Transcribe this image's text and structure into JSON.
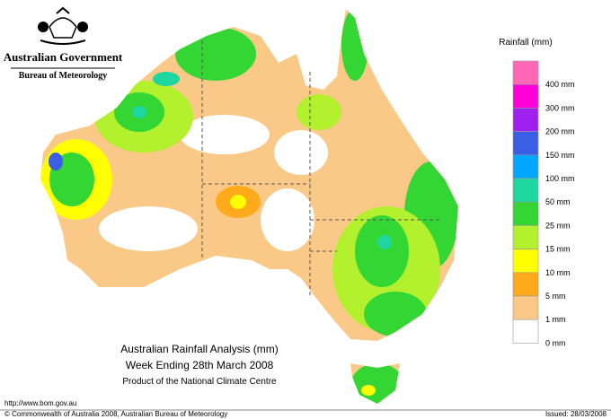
{
  "header": {
    "government": "Australian Government",
    "bureau": "Bureau of Meteorology"
  },
  "legend": {
    "title": "Rainfall (mm)",
    "items": [
      {
        "label": "400 mm",
        "color": "#ff66b3"
      },
      {
        "label": "300 mm",
        "color": "#ff00d9"
      },
      {
        "label": "200 mm",
        "color": "#a020f0"
      },
      {
        "label": "150 mm",
        "color": "#3a5fe6"
      },
      {
        "label": "100 mm",
        "color": "#00a6ff"
      },
      {
        "label": "50 mm",
        "color": "#1ed6a0"
      },
      {
        "label": "25 mm",
        "color": "#33d633"
      },
      {
        "label": "15 mm",
        "color": "#b3f02e"
      },
      {
        "label": "10 mm",
        "color": "#ffff00"
      },
      {
        "label": "5 mm",
        "color": "#ffaa1a"
      },
      {
        "label": "1 mm",
        "color": "#fac987"
      },
      {
        "label": "0 mm",
        "color": "#ffffff"
      }
    ]
  },
  "map": {
    "title": "Australian Rainfall Analysis (mm)",
    "subtitle": "Week Ending 28th March 2008",
    "credit": "Product of the National Climate Centre"
  },
  "footer": {
    "url": "http://www.bom.gov.au",
    "copyright": "© Commonwealth of Australia 2008, Australian Bureau of Meteorology",
    "issued": "Issued: 28/03/2008"
  }
}
